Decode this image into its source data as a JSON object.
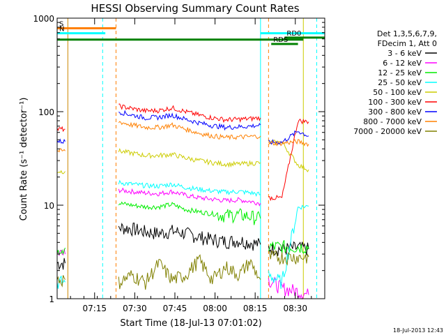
{
  "chart_data": {
    "type": "line",
    "title": "HESSI Observing Summary Count Rates",
    "xlabel": "Start Time (18-Jul-13 07:01:02)",
    "ylabel": "Count Rate (s⁻¹ detector⁻¹)",
    "yscale": "log",
    "ylim": [
      1,
      1000
    ],
    "xlim_minutes": [
      0,
      100
    ],
    "x_ticks": [
      {
        "label": "07:15",
        "minute": 14
      },
      {
        "label": "07:30",
        "minute": 29
      },
      {
        "label": "07:45",
        "minute": 44
      },
      {
        "label": "08:00",
        "minute": 59
      },
      {
        "label": "08:15",
        "minute": 74
      },
      {
        "label": "08:30",
        "minute": 89
      }
    ],
    "y_ticks": [
      {
        "label": "1",
        "value": 1
      },
      {
        "label": "10",
        "value": 10
      },
      {
        "label": "100",
        "value": 100
      },
      {
        "label": "1000",
        "value": 1000
      }
    ],
    "legend": {
      "placement": "right",
      "header_lines": [
        "Det 1,3,5,6,7,9,",
        "FDecim 1, Att 0"
      ]
    },
    "series": [
      {
        "name": "3 - 6 keV",
        "color": "#000000",
        "segments": [
          {
            "x": [
              0,
              3
            ],
            "y": [
              2.4,
              2.4
            ]
          },
          {
            "x": [
              23,
              28,
              33,
              38,
              43,
              48,
              53,
              58,
              63,
              68,
              72,
              76
            ],
            "y": [
              5.8,
              5.6,
              5.2,
              5.0,
              5.3,
              5.0,
              4.6,
              4.3,
              4.1,
              4.2,
              4.0,
              3.8
            ]
          },
          {
            "x": [
              79,
              84,
              90,
              94
            ],
            "y": [
              3.5,
              3.4,
              3.5,
              3.4
            ]
          }
        ]
      },
      {
        "name": "6 - 12 keV",
        "color": "#ff00ff",
        "segments": [
          {
            "x": [
              0,
              3
            ],
            "y": [
              3.0,
              3.0
            ]
          },
          {
            "x": [
              23,
              28,
              33,
              38,
              43,
              48,
              53,
              58,
              63,
              68,
              72,
              76
            ],
            "y": [
              14.5,
              14.0,
              13.5,
              13.3,
              14.0,
              12.8,
              12.0,
              11.6,
              11.2,
              11.4,
              11.0,
              10.5
            ]
          },
          {
            "x": [
              79,
              84,
              90,
              94
            ],
            "y": [
              1.6,
              1.3,
              1.2,
              1.1
            ]
          }
        ]
      },
      {
        "name": "12 - 25 keV",
        "color": "#00ee00",
        "segments": [
          {
            "x": [
              0,
              3
            ],
            "y": [
              3.5,
              3.5
            ]
          },
          {
            "x": [
              23,
              28,
              33,
              38,
              43,
              48,
              53,
              58,
              63,
              68,
              72,
              76
            ],
            "y": [
              10.5,
              10.0,
              9.6,
              9.6,
              10.2,
              9.0,
              8.5,
              8.1,
              7.8,
              7.9,
              7.6,
              7.2
            ]
          },
          {
            "x": [
              79,
              84,
              90,
              94
            ],
            "y": [
              3.6,
              3.6,
              3.6,
              3.6
            ]
          }
        ]
      },
      {
        "name": "25 - 50 keV",
        "color": "#00ffff",
        "segments": [
          {
            "x": [
              0,
              3
            ],
            "y": [
              1.5,
              1.5
            ]
          },
          {
            "x": [
              23,
              28,
              33,
              38,
              43,
              48,
              53,
              58,
              63,
              68,
              72,
              76
            ],
            "y": [
              17.5,
              16.8,
              16.2,
              16.0,
              16.8,
              15.5,
              14.8,
              14.2,
              13.8,
              14.0,
              13.6,
              13.0
            ]
          },
          {
            "x": [
              79,
              84,
              90,
              94
            ],
            "y": [
              1.8,
              1.5,
              9.5,
              9.8
            ]
          }
        ]
      },
      {
        "name": "50 - 100 keV",
        "color": "#cccc00",
        "segments": [
          {
            "x": [
              0,
              3
            ],
            "y": [
              23,
              23
            ]
          },
          {
            "x": [
              23,
              28,
              33,
              38,
              43,
              48,
              53,
              58,
              63,
              68,
              72,
              76
            ],
            "y": [
              38,
              36,
              34,
              34,
              35,
              32,
              30,
              28.5,
              27.5,
              27.5,
              28,
              28.5
            ]
          },
          {
            "x": [
              79,
              84,
              90,
              94
            ],
            "y": [
              47,
              47,
              27,
              24
            ]
          }
        ]
      },
      {
        "name": "100 - 300 keV",
        "color": "#ff0000",
        "segments": [
          {
            "x": [
              0,
              3
            ],
            "y": [
              65,
              65
            ]
          },
          {
            "x": [
              23,
              28,
              33,
              38,
              43,
              48,
              53,
              58,
              63,
              68,
              72,
              76
            ],
            "y": [
              115,
              108,
              102,
              103,
              110,
              100,
              92,
              86,
              82,
              83,
              84,
              86
            ]
          },
          {
            "x": [
              79,
              84,
              90,
              94
            ],
            "y": [
              12,
              12,
              80,
              78
            ]
          }
        ]
      },
      {
        "name": "300 - 800 keV",
        "color": "#0000ff",
        "segments": [
          {
            "x": [
              0,
              3
            ],
            "y": [
              48,
              48
            ]
          },
          {
            "x": [
              23,
              28,
              33,
              38,
              43,
              48,
              53,
              58,
              63,
              68,
              72,
              76
            ],
            "y": [
              100,
              92,
              86,
              87,
              92,
              83,
              76,
              71,
              68,
              69,
              70,
              72
            ]
          },
          {
            "x": [
              79,
              84,
              90,
              94
            ],
            "y": [
              47,
              47,
              62,
              55
            ]
          }
        ]
      },
      {
        "name": "800 - 7000 keV",
        "color": "#ff8000",
        "segments": [
          {
            "x": [
              0,
              3
            ],
            "y": [
              38,
              38
            ]
          },
          {
            "x": [
              23,
              28,
              33,
              38,
              43,
              48,
              53,
              58,
              63,
              68,
              72,
              76
            ],
            "y": [
              78,
              72,
              68,
              68,
              72,
              65,
              59,
              55,
              53,
              53.5,
              54,
              55
            ]
          },
          {
            "x": [
              79,
              84,
              90,
              94
            ],
            "y": [
              46,
              46,
              48,
              45
            ]
          }
        ]
      },
      {
        "name": "7000 - 20000 keV",
        "color": "#808000",
        "segments": [
          {
            "x": [
              0,
              3
            ],
            "y": [
              1.6,
              1.6
            ]
          },
          {
            "x": [
              23,
              28,
              33,
              38,
              43,
              48,
              53,
              58,
              63,
              68,
              72,
              76
            ],
            "y": [
              1.5,
              1.8,
              1.5,
              2.4,
              1.6,
              1.8,
              2.6,
              1.6,
              2.2,
              1.8,
              2.5,
              1.6
            ]
          },
          {
            "x": [
              79,
              84,
              90,
              94
            ],
            "y": [
              2.8,
              2.8,
              2.8,
              2.8
            ]
          }
        ]
      }
    ],
    "flag_lines": [
      {
        "label": "S",
        "color": "#ff8000",
        "x": [
          0,
          22
        ],
        "y": 780
      },
      {
        "label": "N",
        "color": "#00ffff",
        "x": [
          0,
          18
        ],
        "y": 690
      },
      {
        "label": "",
        "color": "#008000",
        "x": [
          0,
          92
        ],
        "y": 590
      },
      {
        "label": "",
        "color": "#00ffff",
        "x": [
          76,
          100
        ],
        "y": 690
      },
      {
        "label": "RD0",
        "color": "#008000",
        "x": [
          85,
          100
        ],
        "y": 620
      },
      {
        "label": "RDS",
        "color": "#008000",
        "x": [
          80,
          90
        ],
        "y": 530
      }
    ],
    "vertical_lines": [
      {
        "color": "#00ffff",
        "style": "solid",
        "x": 0
      },
      {
        "color": "#cc8800",
        "style": "solid",
        "x": 4
      },
      {
        "color": "#00ffff",
        "style": "dashed",
        "x": 17
      },
      {
        "color": "#ff8000",
        "style": "dashed",
        "x": 22
      },
      {
        "color": "#00ffff",
        "style": "solid",
        "x": 76
      },
      {
        "color": "#ff8000",
        "style": "dashed",
        "x": 79
      },
      {
        "color": "#cccc00",
        "style": "solid",
        "x": 92
      },
      {
        "color": "#00ffff",
        "style": "dashed",
        "x": 97
      }
    ],
    "footer_timestamp": "18-Jul-2013 12:43"
  }
}
